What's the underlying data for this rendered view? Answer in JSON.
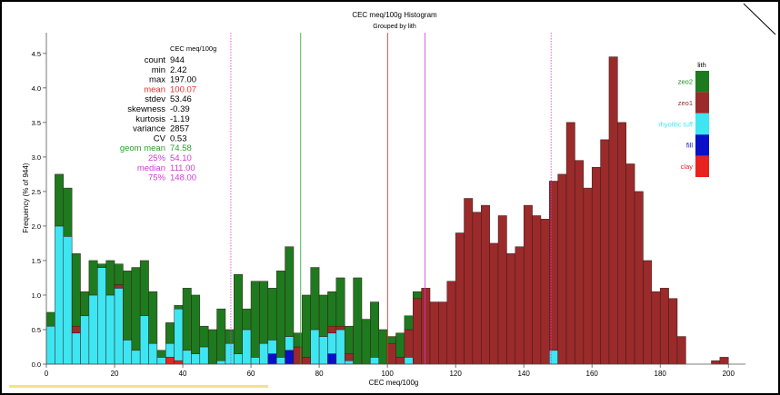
{
  "chart_data": {
    "type": "bar",
    "stacked": true,
    "title": "CEC meq/100g Histogram",
    "subtitle": "Grouped by lith",
    "xlabel": "CEC meq/100g",
    "ylabel": "Frequency (% of 944)",
    "xlim": [
      0,
      205
    ],
    "ylim": [
      0,
      4.8
    ],
    "xticks": [
      0,
      20,
      40,
      60,
      80,
      100,
      120,
      140,
      160,
      180,
      200
    ],
    "yticks": [
      0.0,
      0.5,
      1.0,
      1.5,
      2.0,
      2.5,
      3.0,
      3.5,
      4.0,
      4.5
    ],
    "bin_width": 2.5,
    "bin_start": 0,
    "legend": {
      "title": "lith",
      "position": "right",
      "entries": [
        {
          "name": "zeo2",
          "color": "#1e7a1e",
          "text_color": "#1e8a1e"
        },
        {
          "name": "zeo1",
          "color": "#9b2a2a",
          "text_color": "#9b2a2a"
        },
        {
          "name": "rhyolitic tuff",
          "color": "#3ee6f2",
          "text_color": "#3ee6f2"
        },
        {
          "name": "fill",
          "color": "#0a10c8",
          "text_color": "#0a10c8"
        },
        {
          "name": "clay",
          "color": "#e8231e",
          "text_color": "#e8231e"
        }
      ]
    },
    "stack_order": [
      "clay",
      "fill",
      "rhyolitic tuff",
      "zeo1",
      "zeo2"
    ],
    "series": [
      {
        "name": "clay",
        "color": "#e8231e",
        "values": [
          0,
          0,
          0,
          0,
          0,
          0,
          0,
          0,
          0,
          0,
          0,
          0,
          0,
          0,
          0.1,
          0.05,
          0,
          0,
          0,
          0,
          0,
          0,
          0,
          0,
          0,
          0,
          0,
          0,
          0,
          0,
          0,
          0,
          0,
          0,
          0,
          0,
          0,
          0,
          0,
          0,
          0,
          0,
          0,
          0,
          0,
          0,
          0,
          0,
          0,
          0,
          0,
          0,
          0,
          0,
          0,
          0,
          0,
          0,
          0,
          0,
          0,
          0,
          0,
          0,
          0,
          0,
          0,
          0,
          0,
          0,
          0,
          0,
          0,
          0,
          0,
          0,
          0,
          0,
          0,
          0,
          0,
          0
        ]
      },
      {
        "name": "fill",
        "color": "#0a10c8",
        "values": [
          0,
          0,
          0,
          0,
          0,
          0,
          0,
          0,
          0,
          0,
          0,
          0,
          0,
          0,
          0,
          0,
          0,
          0,
          0,
          0,
          0,
          0,
          0,
          0,
          0,
          0,
          0.15,
          0,
          0.2,
          0,
          0,
          0,
          0,
          0.15,
          0,
          0,
          0,
          0,
          0,
          0,
          0,
          0,
          0,
          0,
          0,
          0,
          0,
          0,
          0,
          0,
          0,
          0,
          0,
          0,
          0,
          0,
          0,
          0,
          0,
          0,
          0,
          0,
          0,
          0,
          0,
          0,
          0,
          0,
          0,
          0,
          0,
          0,
          0,
          0,
          0,
          0,
          0,
          0,
          0,
          0,
          0
        ]
      },
      {
        "name": "rhyolitic tuff",
        "color": "#3ee6f2",
        "values": [
          0.55,
          2.0,
          1.85,
          0.45,
          0.7,
          1.0,
          1.4,
          1.0,
          1.1,
          0.35,
          0.2,
          0.7,
          0.3,
          0.1,
          0.2,
          0.75,
          0.2,
          0.15,
          0.25,
          0,
          0.05,
          0.3,
          0.15,
          0.5,
          0.1,
          0.3,
          0.2,
          0.1,
          0.2,
          0,
          0,
          0.5,
          0.4,
          0.3,
          0.5,
          0.05,
          0,
          0,
          0.1,
          0,
          0,
          0,
          0.1,
          0,
          0,
          0,
          0,
          0,
          0,
          0,
          0,
          0,
          0,
          0,
          0,
          0,
          0,
          0,
          0,
          0.2,
          0,
          0,
          0,
          0,
          0,
          0,
          0,
          0,
          0,
          0,
          0,
          0,
          0,
          0,
          0,
          0,
          0,
          0,
          0,
          0
        ]
      },
      {
        "name": "zeo1",
        "color": "#9b2a2a",
        "values": [
          0,
          0,
          0,
          0.1,
          0,
          0,
          0,
          0,
          0.05,
          0,
          0,
          0,
          0,
          0,
          0,
          0,
          0,
          0,
          0,
          0,
          0,
          0,
          0,
          0,
          0,
          0,
          0,
          0,
          0,
          0.25,
          0.1,
          0,
          0,
          0.1,
          0.05,
          0.1,
          0,
          0,
          0,
          0,
          0.3,
          0.1,
          0.4,
          0.95,
          1.1,
          0.9,
          0.9,
          1.2,
          1.9,
          2.4,
          2.2,
          2.3,
          1.75,
          2.15,
          1.6,
          1.7,
          2.3,
          2.15,
          2.1,
          2.45,
          2.75,
          3.5,
          2.95,
          2.55,
          2.85,
          3.25,
          4.45,
          3.5,
          2.9,
          2.5,
          1.5,
          1.05,
          1.1,
          0.95,
          0.4,
          0,
          0,
          0,
          0.05,
          0.1
        ]
      },
      {
        "name": "zeo2",
        "color": "#1e7a1e",
        "values": [
          0.2,
          0.75,
          0.7,
          1.05,
          0.35,
          0.5,
          0.05,
          0.5,
          0.3,
          1.0,
          1.2,
          0.8,
          0.75,
          0.1,
          0.3,
          0.05,
          0.9,
          0.85,
          0.3,
          0.5,
          0.75,
          0.2,
          1.15,
          0.3,
          1.1,
          0.9,
          0.75,
          1.25,
          1.3,
          0.2,
          0.9,
          0.9,
          0.6,
          0.5,
          0.7,
          0.4,
          1.25,
          0.65,
          0.8,
          0.5,
          0.1,
          0.35,
          0.2,
          0.1,
          0,
          0,
          0,
          0,
          0,
          0,
          0,
          0,
          0,
          0,
          0,
          0,
          0,
          0,
          0,
          0,
          0,
          0,
          0,
          0,
          0,
          0,
          0,
          0,
          0,
          0,
          0,
          0,
          0,
          0,
          0,
          0,
          0,
          0,
          0,
          0
        ]
      }
    ],
    "stat_lines": [
      {
        "label": "25%",
        "value": 54.1,
        "color": "#d33ad3",
        "style": "dotted"
      },
      {
        "label": "geom mean",
        "value": 74.58,
        "color": "#2aa02a",
        "style": "solid"
      },
      {
        "label": "mean",
        "value": 100.07,
        "color": "#e0302a",
        "style": "solid"
      },
      {
        "label": "median",
        "value": 111.0,
        "color": "#d33ad3",
        "style": "solid"
      },
      {
        "label": "75%",
        "value": 148.0,
        "color": "#d33ad3",
        "style": "dotted"
      }
    ],
    "stats_box": {
      "header": "CEC meq/100g",
      "rows": [
        {
          "label": "count",
          "value": "944",
          "color": "#000000"
        },
        {
          "label": "min",
          "value": "2.42",
          "color": "#000000"
        },
        {
          "label": "max",
          "value": "197.00",
          "color": "#000000"
        },
        {
          "label": "mean",
          "value": "100.07",
          "color": "#e0302a"
        },
        {
          "label": "stdev",
          "value": "53.46",
          "color": "#000000"
        },
        {
          "label": "skewness",
          "value": "-0.39",
          "color": "#000000"
        },
        {
          "label": "kurtosis",
          "value": "-1.19",
          "color": "#000000"
        },
        {
          "label": "variance",
          "value": "2857",
          "color": "#000000"
        },
        {
          "label": "CV",
          "value": "0.53",
          "color": "#000000"
        },
        {
          "label": "geom mean",
          "value": "74.58",
          "color": "#2aa02a"
        },
        {
          "label": "25%",
          "value": "54.10",
          "color": "#d33ad3"
        },
        {
          "label": "median",
          "value": "111.00",
          "color": "#d33ad3"
        },
        {
          "label": "75%",
          "value": "148.00",
          "color": "#d33ad3"
        }
      ]
    }
  }
}
